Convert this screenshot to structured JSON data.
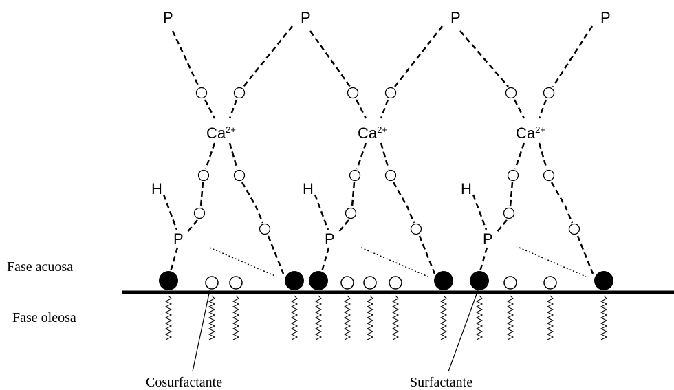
{
  "top_labels": [
    "P",
    "P",
    "P",
    "P"
  ],
  "complexes": [
    {
      "ion": "Ca",
      "charge": "2+",
      "hydrogen": "H",
      "phosphorus": "P"
    },
    {
      "ion": "Ca",
      "charge": "2+",
      "hydrogen": "H",
      "phosphorus": "P"
    },
    {
      "ion": "Ca",
      "charge": "2+",
      "hydrogen": "H",
      "phosphorus": "P"
    }
  ],
  "phases": {
    "aqueous": "Fase acuosa",
    "oily": "Fase oleosa"
  },
  "callouts": {
    "cosurfactant": "Cosurfactante",
    "surfactant": "Surfactante"
  }
}
